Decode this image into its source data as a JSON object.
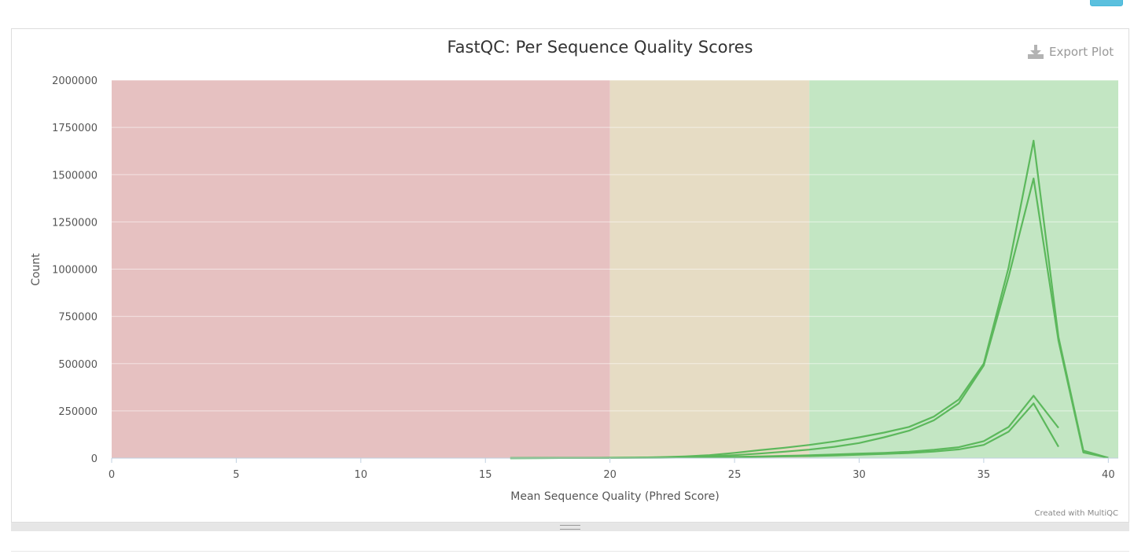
{
  "top": {
    "button_color": "#5bc0de"
  },
  "toolbar": {
    "export_label": "Export Plot",
    "export_icon": "download-icon"
  },
  "credit": "Created with MultiQC",
  "chart_data": {
    "type": "line",
    "title": "FastQC: Per Sequence Quality Scores",
    "xlabel": "Mean Sequence Quality (Phred Score)",
    "ylabel": "Count",
    "xlim": [
      0,
      40
    ],
    "ylim": [
      0,
      2000000
    ],
    "x_ticks": [
      0,
      5,
      10,
      15,
      20,
      25,
      30,
      35,
      40
    ],
    "y_ticks": [
      0,
      250000,
      500000,
      750000,
      1000000,
      1250000,
      1500000,
      1750000,
      2000000
    ],
    "grid": true,
    "legend": "none",
    "bands": [
      {
        "from": 0,
        "to": 20,
        "color": "#e6c1c1"
      },
      {
        "from": 20,
        "to": 28,
        "color": "#e6dcc4"
      },
      {
        "from": 28,
        "to": 40.4,
        "color": "#c3e6c3"
      }
    ],
    "line_color": "#5cb85c",
    "series": [
      {
        "x": [
          16,
          17,
          18,
          19,
          20,
          21,
          22,
          23,
          24,
          25,
          26,
          27,
          28,
          29,
          30,
          31,
          32,
          33,
          34,
          35,
          36,
          37,
          38,
          39,
          40
        ],
        "values": [
          200,
          400,
          600,
          1000,
          2000,
          3000,
          5000,
          9000,
          16000,
          28000,
          42000,
          55000,
          70000,
          88000,
          110000,
          135000,
          165000,
          220000,
          310000,
          500000,
          1010000,
          1680000,
          640000,
          40000,
          2000
        ]
      },
      {
        "x": [
          16,
          17,
          18,
          19,
          20,
          21,
          22,
          23,
          24,
          25,
          26,
          27,
          28,
          29,
          30,
          31,
          32,
          33,
          34,
          35,
          36,
          37,
          38,
          39,
          40
        ],
        "values": [
          100,
          300,
          500,
          800,
          1500,
          2500,
          4000,
          6000,
          10000,
          16000,
          24000,
          34000,
          45000,
          60000,
          80000,
          110000,
          145000,
          200000,
          290000,
          490000,
          960000,
          1480000,
          620000,
          30000,
          1500
        ]
      },
      {
        "x": [
          16,
          17,
          18,
          19,
          20,
          21,
          22,
          23,
          24,
          25,
          26,
          27,
          28,
          29,
          30,
          31,
          32,
          33,
          34,
          35,
          36,
          37,
          38
        ],
        "values": [
          100,
          200,
          300,
          500,
          900,
          1500,
          2500,
          3500,
          5000,
          7000,
          9000,
          12000,
          15000,
          19000,
          24000,
          28000,
          34000,
          44000,
          58000,
          90000,
          165000,
          330000,
          160000
        ]
      },
      {
        "x": [
          16,
          17,
          18,
          19,
          20,
          21,
          22,
          23,
          24,
          25,
          26,
          27,
          28,
          29,
          30,
          31,
          32,
          33,
          34,
          35,
          36,
          37,
          38
        ],
        "values": [
          50,
          150,
          250,
          400,
          700,
          1100,
          1800,
          2800,
          4000,
          5500,
          7000,
          9000,
          11000,
          14000,
          18000,
          22000,
          27000,
          35000,
          46000,
          70000,
          140000,
          290000,
          60000
        ]
      }
    ]
  }
}
